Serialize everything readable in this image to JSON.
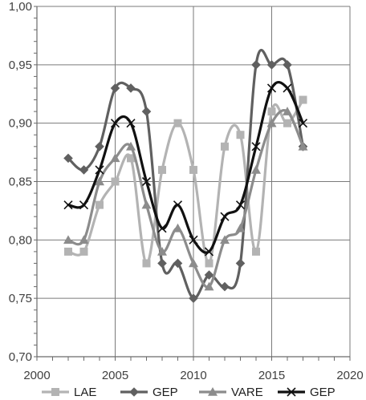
{
  "chart_data": {
    "type": "line",
    "title": "",
    "xlabel": "",
    "ylabel": "",
    "xlim": [
      2000,
      2020
    ],
    "ylim": [
      0.7,
      1.0
    ],
    "x_ticks": [
      2000,
      2005,
      2010,
      2015,
      2020
    ],
    "x_tick_labels": [
      "2000",
      "2005",
      "2010",
      "2015",
      "2020"
    ],
    "y_ticks": [
      0.7,
      0.75,
      0.8,
      0.85,
      0.9,
      0.95,
      1.0
    ],
    "y_tick_labels": [
      "0,70",
      "0,75",
      "0,80",
      "0,85",
      "0,90",
      "0,95",
      "1,00"
    ],
    "grid": true,
    "smooth": true,
    "legend_position": "bottom",
    "x": [
      2002,
      2003,
      2004,
      2005,
      2006,
      2007,
      2008,
      2009,
      2010,
      2011,
      2012,
      2013,
      2014,
      2015,
      2016,
      2017
    ],
    "series": [
      {
        "name": "LAE",
        "color": "#b3b3b3",
        "marker": "square",
        "values": [
          0.79,
          0.79,
          0.83,
          0.85,
          0.87,
          0.78,
          0.86,
          0.9,
          0.86,
          0.78,
          0.88,
          0.89,
          0.79,
          0.91,
          0.9,
          0.92
        ]
      },
      {
        "name": "GEP",
        "color": "#606060",
        "marker": "diamond",
        "values": [
          0.87,
          0.86,
          0.88,
          0.93,
          0.93,
          0.91,
          0.78,
          0.78,
          0.75,
          0.77,
          0.76,
          0.78,
          0.95,
          0.95,
          0.95,
          0.88
        ]
      },
      {
        "name": "VARE",
        "color": "#8c8c8c",
        "marker": "triangle",
        "values": [
          0.8,
          0.8,
          0.85,
          0.87,
          0.88,
          0.83,
          0.79,
          0.81,
          0.78,
          0.76,
          0.8,
          0.81,
          0.86,
          0.9,
          0.91,
          0.88
        ]
      },
      {
        "name": "GEP",
        "color": "#111111",
        "marker": "x",
        "values": [
          0.83,
          0.83,
          0.86,
          0.9,
          0.9,
          0.85,
          0.81,
          0.83,
          0.8,
          0.79,
          0.82,
          0.83,
          0.88,
          0.93,
          0.93,
          0.9
        ]
      }
    ]
  }
}
